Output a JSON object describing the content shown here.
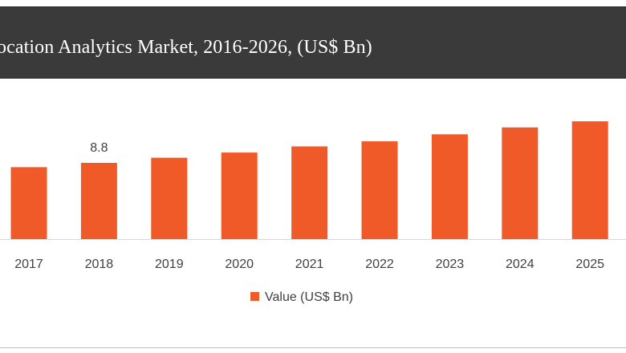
{
  "chart_data": {
    "type": "bar",
    "title": "ocation Analytics Market, 2016-2026, (US$ Bn)",
    "categories": [
      "2017",
      "2018",
      "2019",
      "2020",
      "2021",
      "2022",
      "2023",
      "2024",
      "2025"
    ],
    "series": [
      {
        "name": "Value (US$ Bn)",
        "values": [
          8.3,
          8.8,
          9.4,
          10.0,
          10.7,
          11.3,
          12.1,
          12.9,
          13.6
        ],
        "color": "#f05a28"
      }
    ],
    "data_labels": [
      {
        "category": "2018",
        "text": "8.8"
      }
    ],
    "ylim": [
      0,
      13.9
    ],
    "grid": false,
    "legend_position": "bottom-center",
    "colors": {
      "title_bar": "#3a3a3a",
      "bar": "#f05a28",
      "axis": "#d9d9d9"
    }
  }
}
